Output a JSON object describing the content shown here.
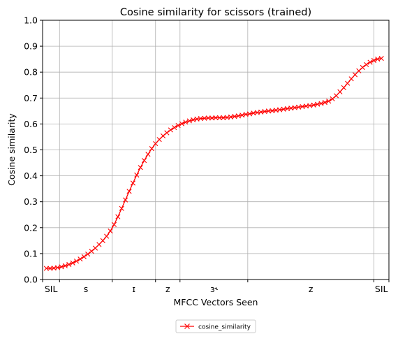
{
  "chart_data": {
    "type": "line",
    "title": "Cosine similarity for scissors (trained)",
    "xlabel": "MFCC Vectors Seen",
    "ylabel": "Cosine similarity",
    "ylim": [
      0,
      1.0
    ],
    "yticks": [
      "0.0",
      "0.1",
      "0.2",
      "0.3",
      "0.4",
      "0.5",
      "0.6",
      "0.7",
      "0.8",
      "0.9",
      "1.0"
    ],
    "grid": true,
    "legend_position": "bottom-center",
    "xlim": [
      0,
      92
    ],
    "phone_boundaries": [
      0,
      4.5,
      18.5,
      30,
      36.5,
      54.5,
      88,
      92
    ],
    "phone_labels": [
      "SIL",
      "s",
      "ɪ",
      "z",
      "ɜ˞",
      "z",
      "SIL"
    ],
    "phone_centers": [
      2.25,
      11.5,
      24.25,
      33.25,
      45.5,
      71.25,
      90
    ],
    "series": [
      {
        "name": "cosine_similarity",
        "color": "#ff0000",
        "marker": "x",
        "x": [
          1,
          2,
          3,
          4,
          5,
          6,
          7,
          8,
          9,
          10,
          11,
          12,
          13,
          14,
          15,
          16,
          17,
          18,
          19,
          20,
          21,
          22,
          23,
          24,
          25,
          26,
          27,
          28,
          29,
          30,
          31,
          32,
          33,
          34,
          35,
          36,
          37,
          38,
          39,
          40,
          41,
          42,
          43,
          44,
          45,
          46,
          47,
          48,
          49,
          50,
          51,
          52,
          53,
          54,
          55,
          56,
          57,
          58,
          59,
          60,
          61,
          62,
          63,
          64,
          65,
          66,
          67,
          68,
          69,
          70,
          71,
          72,
          73,
          74,
          75,
          76,
          77,
          78,
          79,
          80,
          81,
          82,
          83,
          84,
          85,
          86,
          87,
          88,
          89,
          90
        ],
        "values": [
          0.043,
          0.043,
          0.044,
          0.046,
          0.049,
          0.053,
          0.058,
          0.064,
          0.071,
          0.079,
          0.088,
          0.098,
          0.109,
          0.121,
          0.135,
          0.15,
          0.167,
          0.187,
          0.212,
          0.242,
          0.274,
          0.307,
          0.34,
          0.372,
          0.403,
          0.432,
          0.459,
          0.483,
          0.505,
          0.524,
          0.54,
          0.554,
          0.566,
          0.577,
          0.586,
          0.594,
          0.601,
          0.607,
          0.612,
          0.616,
          0.619,
          0.621,
          0.622,
          0.623,
          0.623,
          0.624,
          0.624,
          0.624,
          0.625,
          0.627,
          0.629,
          0.631,
          0.634,
          0.637,
          0.639,
          0.642,
          0.644,
          0.646,
          0.648,
          0.65,
          0.651,
          0.653,
          0.655,
          0.657,
          0.659,
          0.661,
          0.663,
          0.665,
          0.667,
          0.669,
          0.671,
          0.673,
          0.676,
          0.679,
          0.683,
          0.688,
          0.697,
          0.709,
          0.724,
          0.74,
          0.757,
          0.774,
          0.79,
          0.805,
          0.818,
          0.829,
          0.838,
          0.845,
          0.85,
          0.853
        ]
      }
    ]
  }
}
